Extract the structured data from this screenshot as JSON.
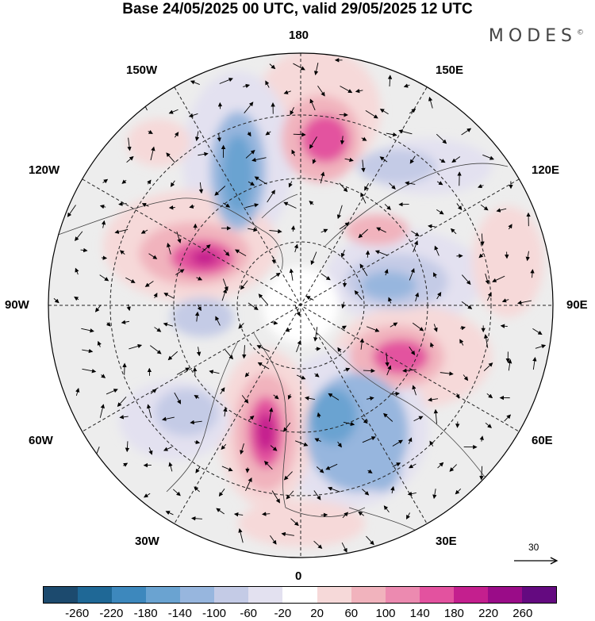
{
  "title": "Base 24/05/2025 00 UTC, valid 29/05/2025 12 UTC",
  "brand": "MODES",
  "brand_mark": "©",
  "meridian_labels": {
    "top": "180",
    "bottom": "0",
    "left": "90W",
    "right": "90E",
    "upper_left_1": "150W",
    "upper_left_2": "120W",
    "upper_right_1": "150E",
    "upper_right_2": "120E",
    "lower_left_1": "60W",
    "lower_left_2": "30W",
    "lower_right_1": "60E",
    "lower_right_2": "30E"
  },
  "wind_scale": {
    "label": "30"
  },
  "colorbar": {
    "colors": [
      "#1c4a6e",
      "#1f6896",
      "#3d88bd",
      "#6aa3d1",
      "#97b6de",
      "#c4cbe6",
      "#e3e1f0",
      "#ffffff",
      "#f6d9d9",
      "#f1b3bd",
      "#ec8ab0",
      "#e3529f",
      "#c41f8e",
      "#9a0c88",
      "#640a80"
    ],
    "ticks": [
      "-260",
      "-220",
      "-180",
      "-140",
      "-100",
      "-60",
      "-20",
      "20",
      "60",
      "100",
      "140",
      "180",
      "220",
      "260"
    ]
  },
  "anomaly_centers": {
    "positive": [
      "north-of-180 (near Chukchi/Arctic, strong)",
      "120W-Canada (strong)",
      "Europe/Atlantic 30W (strong)",
      "Siberia 70E (strong)",
      "150W Alaska (weak)",
      "Scandinavia 150E (weak)"
    ],
    "negative": [
      "150W Alaska-Bering (strong)",
      "Siberia 90E-100E (strong)",
      "Europe 30E (strong)",
      "Greenland 90W (moderate)",
      "Atlantic 60W (moderate)",
      "East Siberia 120E (moderate)"
    ]
  }
}
